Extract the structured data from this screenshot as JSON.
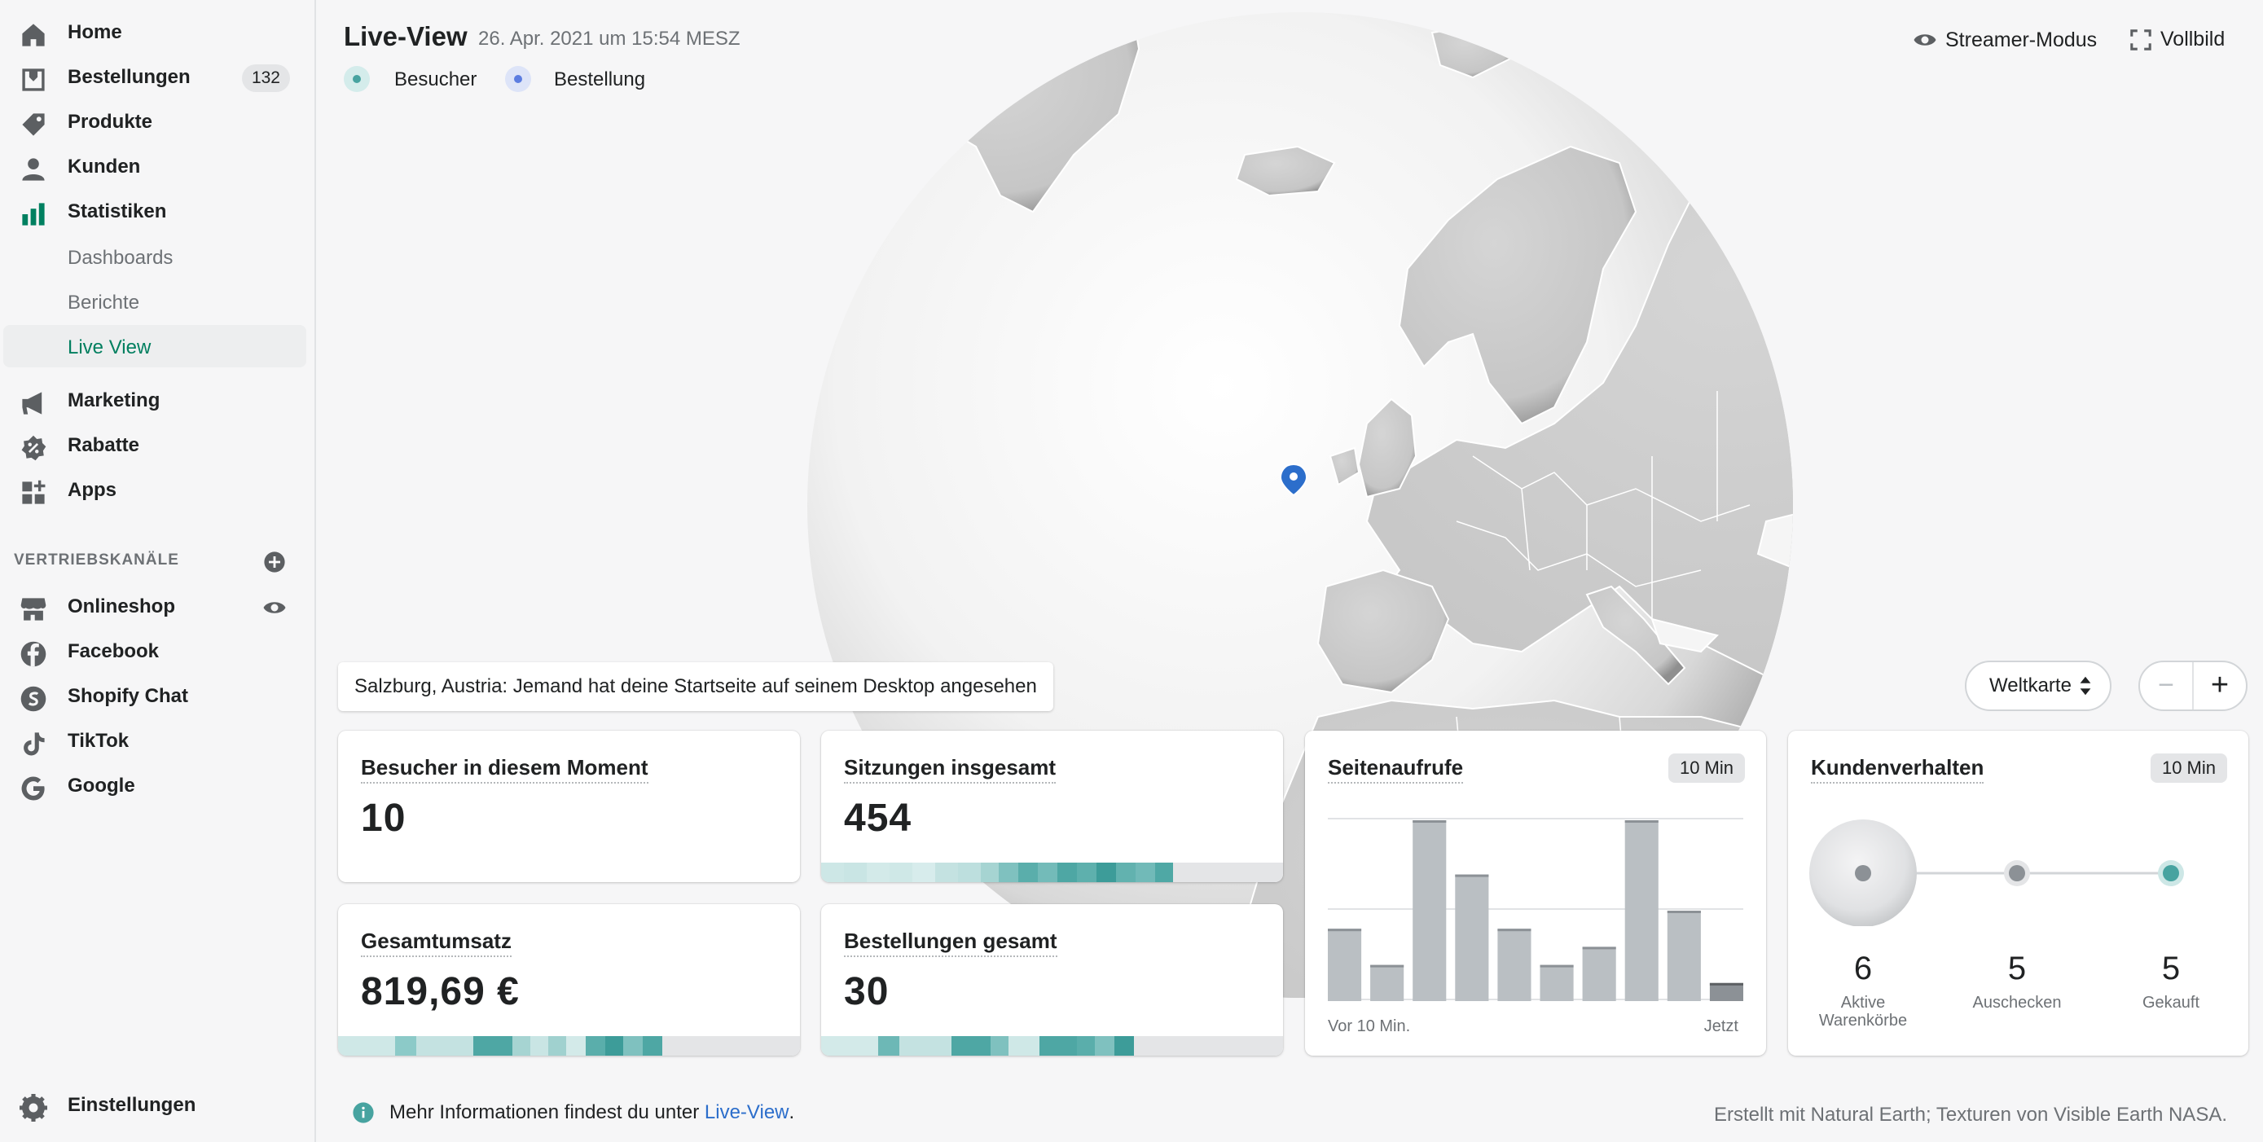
{
  "sidebar": {
    "items": [
      {
        "label": "Home",
        "icon": "home-icon"
      },
      {
        "label": "Bestellungen",
        "icon": "orders-icon",
        "badge": "132"
      },
      {
        "label": "Produkte",
        "icon": "tag-icon"
      },
      {
        "label": "Kunden",
        "icon": "person-icon"
      },
      {
        "label": "Statistiken",
        "icon": "bar-chart-icon"
      }
    ],
    "sub_items": [
      {
        "label": "Dashboards"
      },
      {
        "label": "Berichte"
      },
      {
        "label": "Live View",
        "active": true
      }
    ],
    "items2": [
      {
        "label": "Marketing",
        "icon": "megaphone-icon"
      },
      {
        "label": "Rabatte",
        "icon": "discount-icon"
      },
      {
        "label": "Apps",
        "icon": "apps-icon"
      }
    ],
    "channels_title": "VERTRIEBSKANÄLE",
    "channels": [
      {
        "label": "Onlineshop",
        "icon": "store-icon"
      },
      {
        "label": "Facebook",
        "icon": "facebook-icon"
      },
      {
        "label": "Shopify Chat",
        "icon": "shopify-chat-icon"
      },
      {
        "label": "TikTok",
        "icon": "tiktok-icon"
      },
      {
        "label": "Google",
        "icon": "google-icon"
      }
    ],
    "settings_label": "Einstellungen"
  },
  "header": {
    "title": "Live-View",
    "datestamp": "26. Apr. 2021 um 15:54 MESZ",
    "legend": [
      {
        "label": "Besucher",
        "color": "#47a3a0"
      },
      {
        "label": "Bestellung",
        "color": "#5c7de0"
      }
    ],
    "streamer_label": "Streamer-Modus",
    "fullscreen_label": "Vollbild"
  },
  "notification": "Salzburg, Austria: Jemand hat deine Startseite auf seinem Desktop angesehen",
  "map_controls": {
    "map_type": "Weltkarte",
    "zoom_out": "−",
    "zoom_in": "+"
  },
  "cards": {
    "visitors": {
      "title": "Besucher in diesem Moment",
      "value": "10"
    },
    "sessions": {
      "title": "Sitzungen insgesamt",
      "value": "454"
    },
    "revenue": {
      "title": "Gesamtumsatz",
      "value": "819,69 €"
    },
    "orders": {
      "title": "Bestellungen gesamt",
      "value": "30"
    },
    "pageviews": {
      "title": "Seitenaufrufe",
      "period": "10 Min",
      "x_start": "Vor 10 Min.",
      "x_end": "Jetzt"
    },
    "behavior": {
      "title": "Kundenverhalten",
      "period": "10 Min",
      "steps": [
        {
          "value": "6",
          "label": "Aktive Warenkörbe"
        },
        {
          "value": "5",
          "label": "Auschecken"
        },
        {
          "value": "5",
          "label": "Gekauft"
        }
      ]
    }
  },
  "chart_data": {
    "type": "bar",
    "title": "Seitenaufrufe",
    "values": [
      4,
      2,
      10,
      7,
      4,
      2,
      3,
      10,
      5,
      1
    ],
    "ylim": [
      0,
      10
    ],
    "xlabel": "",
    "ylabel": ""
  },
  "footer": {
    "info_prefix": "Mehr Informationen findest du unter",
    "info_link": "Live-View",
    "info_suffix": ".",
    "credit": "Erstellt mit Natural Earth; Texturen von Visible Earth NASA."
  }
}
